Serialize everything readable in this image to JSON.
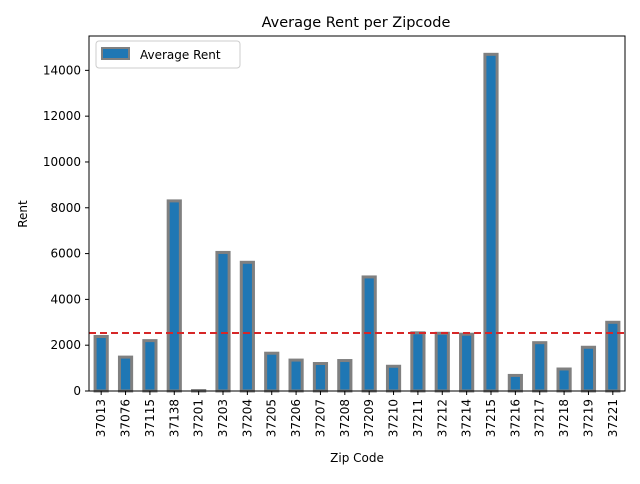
{
  "chart_data": {
    "type": "bar",
    "title": "Average Rent per Zipcode",
    "xlabel": "Zip Code",
    "ylabel": "Rent",
    "categories": [
      "37013",
      "37076",
      "37115",
      "37138",
      "37201",
      "37203",
      "37204",
      "37205",
      "37206",
      "37207",
      "37208",
      "37209",
      "37210",
      "37211",
      "37212",
      "37214",
      "37215",
      "37216",
      "37217",
      "37218",
      "37219",
      "37221"
    ],
    "series": [
      {
        "name": "Average Rent",
        "values": [
          2380,
          1480,
          2200,
          8300,
          20,
          6050,
          5620,
          1650,
          1350,
          1200,
          1330,
          4980,
          1080,
          2540,
          2520,
          2480,
          14700,
          680,
          2110,
          960,
          1910,
          3000
        ],
        "color": "#1f77b4",
        "edge_color": "#808080"
      }
    ],
    "reference_line": {
      "value": 2530,
      "color": "#d62728",
      "style": "dashed"
    },
    "ylim": [
      0,
      15500
    ],
    "yticks": [
      0,
      2000,
      4000,
      6000,
      8000,
      10000,
      12000,
      14000
    ],
    "ytick_labels": [
      "0",
      "2000",
      "4000",
      "6000",
      "8000",
      "10000",
      "12000",
      "14000"
    ],
    "grid": false,
    "legend_position": "top-left"
  }
}
